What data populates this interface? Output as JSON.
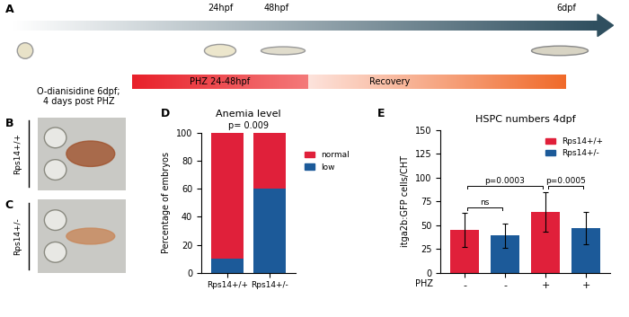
{
  "panel_labels": [
    "A",
    "B",
    "C",
    "D",
    "E"
  ],
  "timeline": {
    "stages": [
      "24hpf",
      "48hpf",
      "6dpf"
    ],
    "treatment": "PHZ 24-48hpf",
    "recovery": "Recovery"
  },
  "images": {
    "caption": [
      "O-dianisidine 6dpf;",
      "4 days post PHZ"
    ],
    "rows": [
      "Rps14+/+",
      "Rps14+/-"
    ]
  },
  "chart_data": [
    {
      "type": "bar",
      "title": "Anemia level",
      "annotation": "p= 0.009",
      "ylabel": "Percentage of embryos",
      "categories": [
        "Rps14+/+",
        "Rps14+/-"
      ],
      "stacked": true,
      "series": [
        {
          "name": "normal",
          "color": "#e0203a",
          "values": [
            90,
            40
          ]
        },
        {
          "name": "low",
          "color": "#1c5a99",
          "values": [
            10,
            60
          ]
        }
      ],
      "ylim": [
        0,
        100
      ],
      "yticks": [
        0,
        20,
        40,
        60,
        80,
        100
      ],
      "legend": "right"
    },
    {
      "type": "bar",
      "title": "HSPC numbers 4dpf",
      "ylabel": "itga2b:GFP cells/CHT",
      "categories": [
        "-",
        "-",
        "+",
        "+"
      ],
      "row_label": "PHZ",
      "series": [
        {
          "name": "Rps14+/+",
          "color": "#e0203a",
          "values": [
            45,
            null,
            64,
            null
          ],
          "errors": [
            18,
            null,
            21,
            null
          ]
        },
        {
          "name": "Rps14+/-",
          "color": "#1c5a99",
          "values": [
            null,
            39,
            null,
            47
          ],
          "errors": [
            null,
            13,
            null,
            17
          ]
        }
      ],
      "ylim": [
        0,
        150
      ],
      "yticks": [
        0,
        25,
        50,
        75,
        100,
        125,
        150
      ],
      "legend": "upper right",
      "brackets": [
        {
          "text": "ns",
          "between": [
            0,
            1
          ]
        },
        {
          "text": "p=0.0003",
          "between": [
            0,
            2
          ]
        },
        {
          "text": "p=0.0005",
          "between": [
            2,
            3
          ]
        }
      ]
    }
  ]
}
